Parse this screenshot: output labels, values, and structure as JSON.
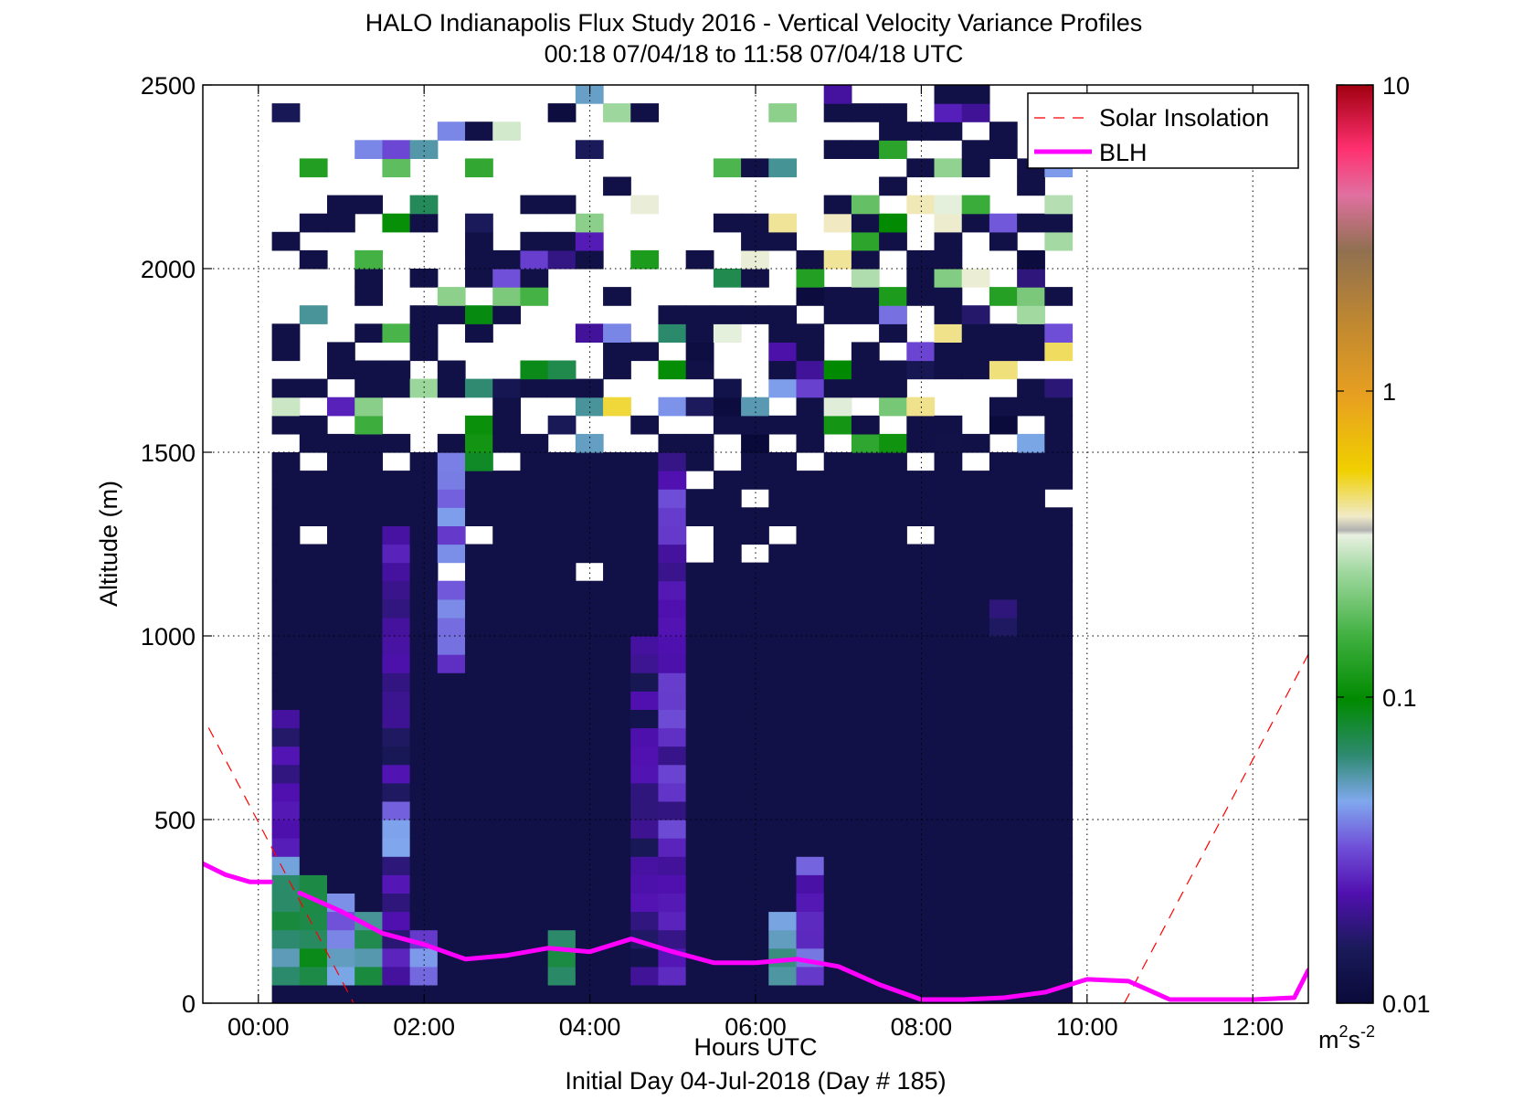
{
  "chart_data": {
    "type": "heatmap",
    "title": "HALO Indianapolis Flux Study 2016 - Vertical Velocity Variance Profiles",
    "subtitle": "00:18 07/04/18 to 11:58 07/04/18  UTC",
    "xlabel": "Hours UTC",
    "xlabel2": "Initial Day 04-Jul-2018 (Day # 185)",
    "ylabel": "Altitude (m)",
    "xlim": [
      -0.67,
      12.67
    ],
    "ylim": [
      0,
      2500
    ],
    "x_ticks": [
      0,
      2,
      4,
      6,
      8,
      10,
      12
    ],
    "x_tick_labels": [
      "00:00",
      "02:00",
      "04:00",
      "06:00",
      "08:00",
      "10:00",
      "12:00"
    ],
    "y_ticks": [
      0,
      500,
      1000,
      1500,
      2000,
      2500
    ],
    "y_tick_labels": [
      "0",
      "500",
      "1000",
      "1500",
      "2000",
      "2500"
    ],
    "grid": "dotted",
    "legend_position": "top-right",
    "colorbar": {
      "scale": "log",
      "range": [
        0.01,
        10
      ],
      "tick_values": [
        0.01,
        0.1,
        1,
        10
      ],
      "tick_labels": [
        "0.01",
        "0.1",
        "1",
        "10"
      ],
      "unit_label": "m",
      "unit_sup1": "2",
      "unit_mid": "s",
      "unit_sup2": "-2"
    },
    "heatmap": {
      "x_start": 0.33,
      "x_step": 0.333,
      "columns": 29,
      "altitude_start": 25,
      "altitude_step": 50,
      "rows": 50,
      "background_value": 0.012,
      "background_top_altitude": 1500,
      "patches": [
        {
          "col": 0,
          "alt": [
            50,
            400
          ],
          "value": 0.06
        },
        {
          "col": 0,
          "alt": [
            400,
            800
          ],
          "value": 0.02
        },
        {
          "col": 1,
          "alt": [
            50,
            350
          ],
          "value": 0.08
        },
        {
          "col": 2,
          "alt": [
            50,
            300
          ],
          "value": 0.04
        },
        {
          "col": 3,
          "alt": [
            50,
            250
          ],
          "value": 0.07
        },
        {
          "col": 4,
          "alt": [
            50,
            1300
          ],
          "value": 0.02
        },
        {
          "col": 4,
          "alt": [
            400,
            550
          ],
          "value": 0.04
        },
        {
          "col": 5,
          "alt": [
            50,
            200
          ],
          "value": 0.035
        },
        {
          "col": 6,
          "alt": [
            900,
            1500
          ],
          "value": 0.035
        },
        {
          "col": 7,
          "alt": [
            1450,
            1800
          ],
          "value": 0.09
        },
        {
          "col": 10,
          "alt": [
            50,
            200
          ],
          "value": 0.08
        },
        {
          "col": 13,
          "alt": [
            50,
            1000
          ],
          "value": 0.018
        },
        {
          "col": 14,
          "alt": [
            50,
            1500
          ],
          "value": 0.025
        },
        {
          "col": 18,
          "alt": [
            50,
            250
          ],
          "value": 0.06
        },
        {
          "col": 19,
          "alt": [
            50,
            400
          ],
          "value": 0.03
        },
        {
          "col": 26,
          "alt": [
            1000,
            1100
          ],
          "value": 0.016
        }
      ],
      "top_speckle_value_range": [
        0.01,
        0.5
      ]
    },
    "series": [
      {
        "name": "Solar Insolation",
        "style": "dashed",
        "color": "#ff0000",
        "segments": [
          {
            "x": [
              -0.6,
              1.15
            ],
            "y": [
              750,
              0
            ]
          },
          {
            "x": [
              10.45,
              12.67
            ],
            "y": [
              0,
              950
            ]
          }
        ]
      },
      {
        "name": "BLH",
        "style": "solid",
        "color": "#ff00ff",
        "segments": [
          {
            "x": [
              -0.67,
              -0.4,
              -0.1,
              0.15
            ],
            "y": [
              380,
              350,
              330,
              330
            ]
          },
          {
            "x": [
              0.5,
              1.0,
              1.5,
              2.0,
              2.5,
              3.0,
              3.5,
              4.0,
              4.5,
              5.0,
              5.5,
              6.0,
              6.5,
              7.0,
              7.5,
              8.0,
              8.5,
              9.0,
              9.5,
              10.0,
              10.5,
              11.0,
              11.5,
              12.0,
              12.5,
              12.67
            ],
            "y": [
              300,
              250,
              190,
              160,
              120,
              130,
              150,
              140,
              175,
              140,
              110,
              110,
              120,
              100,
              50,
              10,
              10,
              15,
              30,
              65,
              60,
              10,
              10,
              10,
              15,
              90
            ]
          }
        ]
      }
    ]
  }
}
